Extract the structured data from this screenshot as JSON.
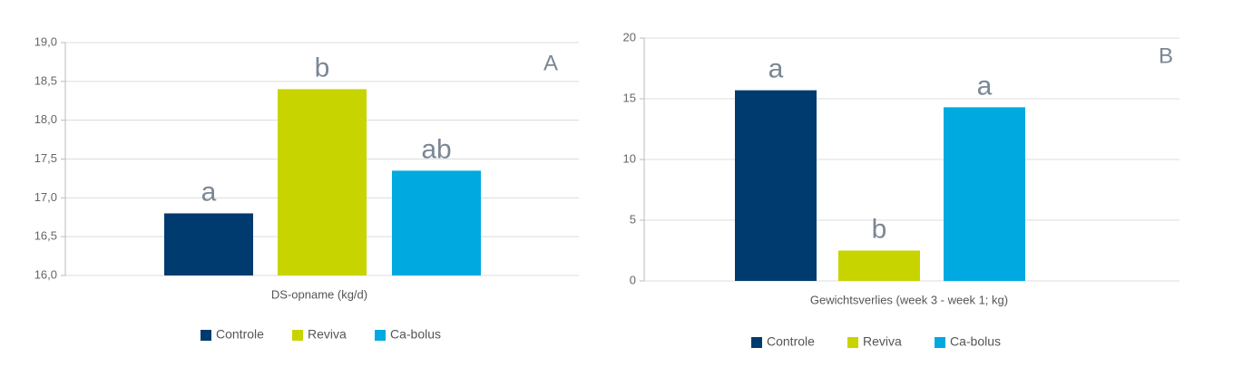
{
  "chart_data": [
    {
      "type": "bar",
      "panel": "A",
      "x_label": "DS-opname (kg/d)",
      "ylim": [
        16,
        19
      ],
      "yticks": [
        {
          "value": 16,
          "label": "16,0"
        },
        {
          "value": 16.5,
          "label": "16,5"
        },
        {
          "value": 17,
          "label": "17,0"
        },
        {
          "value": 17.5,
          "label": "17,5"
        },
        {
          "value": 18,
          "label": "18,0"
        },
        {
          "value": 18.5,
          "label": "18,5"
        },
        {
          "value": 19,
          "label": "19,0"
        }
      ],
      "grid": true,
      "series": [
        {
          "name": "Controle",
          "color": "#003b6f",
          "values": [
            16.8
          ],
          "annotation": "a"
        },
        {
          "name": "Reviva",
          "color": "#c8d400",
          "values": [
            18.4
          ],
          "annotation": "b"
        },
        {
          "name": "Ca-bolus",
          "color": "#00a9e0",
          "values": [
            17.35
          ],
          "annotation": "ab"
        }
      ]
    },
    {
      "type": "bar",
      "panel": "B",
      "x_label": "Gewichtsverlies (week 3 - week 1; kg)",
      "ylim": [
        0,
        20
      ],
      "yticks": [
        0,
        5,
        10,
        15,
        20
      ],
      "grid": true,
      "series": [
        {
          "name": "Controle",
          "color": "#003b6f",
          "values": [
            15.7
          ],
          "annotation": "a"
        },
        {
          "name": "Reviva",
          "color": "#c8d400",
          "values": [
            2.5
          ],
          "annotation": "b"
        },
        {
          "name": "Ca-bolus",
          "color": "#00a9e0",
          "values": [
            14.3
          ],
          "annotation": "a"
        }
      ]
    }
  ]
}
